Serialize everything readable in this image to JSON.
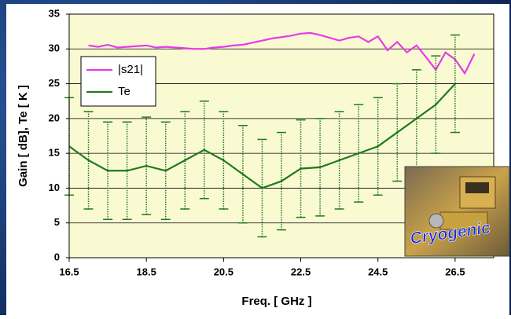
{
  "chart_data": {
    "type": "line",
    "xlabel": "Freq. [ GHz ]",
    "ylabel": "Gain [ dB],   Te [ K ]",
    "xlim": [
      16.5,
      27.5
    ],
    "ylim": [
      0,
      35
    ],
    "xticks": [
      16.5,
      18.5,
      20.5,
      22.5,
      24.5,
      26.5
    ],
    "yticks": [
      0,
      5,
      10,
      15,
      20,
      25,
      30,
      35
    ],
    "grid": true,
    "legend": "upper left",
    "annotation": "Cryogenic",
    "series": [
      {
        "name": "|s21|",
        "color": "#e83be8",
        "x": [
          17,
          17.25,
          17.5,
          17.75,
          18,
          18.25,
          18.5,
          18.75,
          19,
          19.25,
          19.5,
          19.75,
          20,
          20.25,
          20.5,
          20.75,
          21,
          21.25,
          21.5,
          21.75,
          22,
          22.25,
          22.5,
          22.75,
          23,
          23.25,
          23.5,
          23.75,
          24,
          24.25,
          24.5,
          24.75,
          25,
          25.25,
          25.5,
          25.75,
          26,
          26.25,
          26.5,
          26.75,
          27
        ],
        "values": [
          30.5,
          30.3,
          30.6,
          30.2,
          30.3,
          30.4,
          30.5,
          30.2,
          30.3,
          30.2,
          30.1,
          30.0,
          30.0,
          30.2,
          30.3,
          30.5,
          30.6,
          30.9,
          31.2,
          31.5,
          31.7,
          31.9,
          32.2,
          32.3,
          32.0,
          31.6,
          31.2,
          31.6,
          31.8,
          31.0,
          31.8,
          29.8,
          31.0,
          29.5,
          30.5,
          28.8,
          27.0,
          29.5,
          28.5,
          26.5,
          29.3
        ]
      },
      {
        "name": "Te",
        "color": "#1f7a1f",
        "x": [
          16.5,
          17,
          17.5,
          18,
          18.5,
          19,
          19.5,
          20,
          20.5,
          21,
          21.5,
          22,
          22.5,
          23,
          23.5,
          24,
          24.5,
          25,
          25.5,
          26,
          26.5
        ],
        "values": [
          16,
          14,
          12.5,
          12.5,
          13.2,
          12.5,
          14,
          15.5,
          14,
          12,
          10,
          11,
          12.8,
          13,
          14,
          15,
          16,
          18,
          20,
          22,
          25
        ],
        "errors": [
          7,
          7,
          7,
          7,
          7,
          7,
          7,
          7,
          7,
          7,
          7,
          7,
          7,
          7,
          7,
          7,
          7,
          7,
          7,
          7,
          7
        ]
      }
    ]
  }
}
